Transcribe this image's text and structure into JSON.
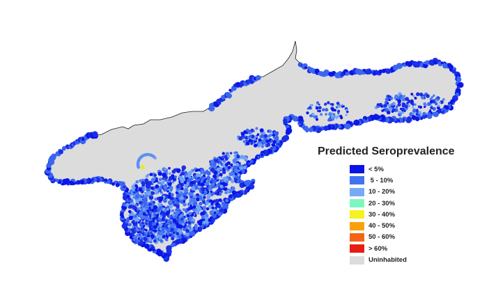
{
  "map": {
    "land_color": "#dcdcdc",
    "outline_color": "#1a1a1a",
    "cluster_palette": [
      "#0b16e8",
      "#1c2ee6",
      "#3b66ef",
      "#4d7df2",
      "#6fa4f6"
    ],
    "hotspot_color": "#e8ec2a"
  },
  "legend": {
    "title": "Predicted Seroprevalence",
    "items": [
      {
        "label": "< 5%",
        "color": "#0a14e6"
      },
      {
        "label": " 5 - 10%",
        "color": "#4173f0"
      },
      {
        "label": "10 - 20%",
        "color": "#76aaf6"
      },
      {
        "label": "20 - 30%",
        "color": "#7ff6c2"
      },
      {
        "label": "30 - 40%",
        "color": "#f4f21f"
      },
      {
        "label": "40 - 50%",
        "color": "#f9a10c"
      },
      {
        "label": "50 - 60%",
        "color": "#f46416"
      },
      {
        "label": "> 60%",
        "color": "#e81c12"
      },
      {
        "label": "Uninhabited",
        "color": "#dcdcdc"
      }
    ]
  }
}
